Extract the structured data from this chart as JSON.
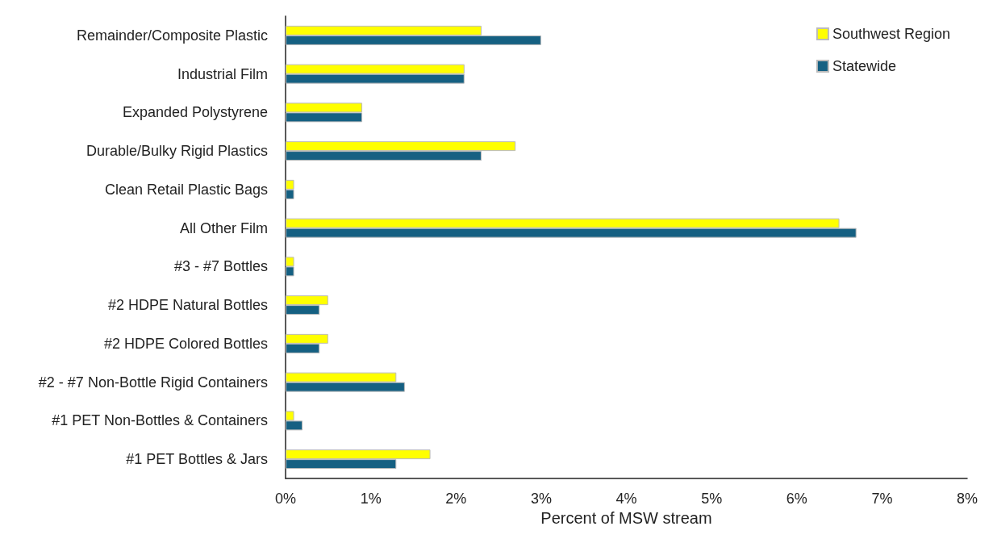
{
  "chart_data": {
    "type": "bar",
    "orientation": "horizontal",
    "xlabel": "Percent of MSW stream",
    "categories": [
      "Remainder/Composite Plastic",
      "Industrial Film",
      "Expanded Polystyrene",
      "Durable/Bulky Rigid Plastics",
      "Clean Retail Plastic Bags",
      "All Other Film",
      "#3 - #7 Bottles",
      "#2 HDPE Natural Bottles",
      "#2 HDPE Colored Bottles",
      "#2 - #7 Non-Bottle Rigid Containers",
      "#1 PET Non-Bottles & Containers",
      "#1 PET Bottles & Jars"
    ],
    "series": [
      {
        "name": "Southwest Region",
        "color": "#ffff00",
        "values": [
          2.3,
          2.1,
          0.9,
          2.7,
          0.1,
          6.5,
          0.1,
          0.5,
          0.5,
          1.3,
          0.1,
          1.7
        ]
      },
      {
        "name": "Statewide",
        "color": "#156082",
        "values": [
          3.0,
          2.1,
          0.9,
          2.3,
          0.1,
          6.7,
          0.1,
          0.4,
          0.4,
          1.4,
          0.2,
          1.3
        ]
      }
    ],
    "xlim": [
      0,
      8
    ],
    "xticks": [
      {
        "value": 0,
        "label": "0%"
      },
      {
        "value": 1,
        "label": "1%"
      },
      {
        "value": 2,
        "label": "2%"
      },
      {
        "value": 3,
        "label": "3%"
      },
      {
        "value": 4,
        "label": "4%"
      },
      {
        "value": 5,
        "label": "5%"
      },
      {
        "value": 6,
        "label": "6%"
      },
      {
        "value": 7,
        "label": "7%"
      },
      {
        "value": 8,
        "label": "8%"
      }
    ],
    "grid": false,
    "legend": "top right"
  }
}
